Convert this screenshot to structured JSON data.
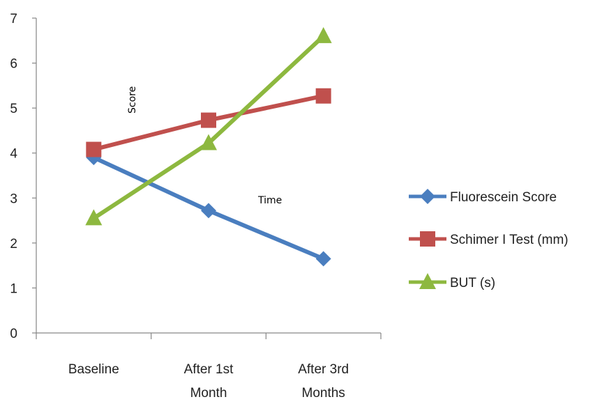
{
  "chart_data": {
    "type": "line",
    "title": "",
    "xlabel": "Time",
    "ylabel": "Score",
    "categories": [
      [
        "Baseline"
      ],
      [
        "After 1st",
        "Month"
      ],
      [
        "After 3rd",
        "Months"
      ]
    ],
    "ylim": [
      0,
      7
    ],
    "yticks": [
      0,
      1,
      2,
      3,
      4,
      5,
      6,
      7
    ],
    "grid": false,
    "legend_position": "right",
    "series": [
      {
        "name": "Fluorescein Score",
        "values": [
          3.9,
          2.72,
          1.65
        ],
        "color": "#4a7ebf",
        "marker": "diamond"
      },
      {
        "name": "Schimer I Test (mm)",
        "values": [
          4.08,
          4.73,
          5.27
        ],
        "color": "#c0504d",
        "marker": "square"
      },
      {
        "name": "BUT (s)",
        "values": [
          2.55,
          4.22,
          6.6
        ],
        "color": "#8db83f",
        "marker": "triangle"
      }
    ]
  }
}
